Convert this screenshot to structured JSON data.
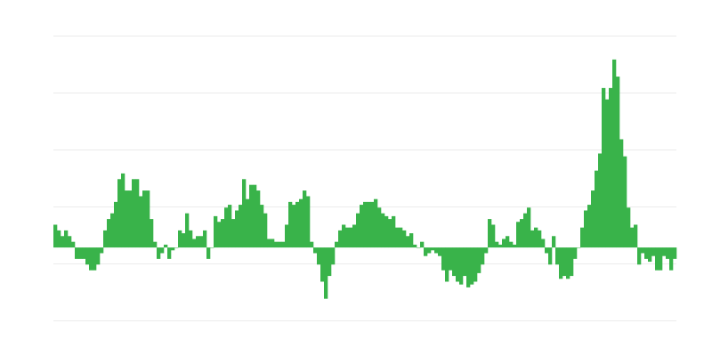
{
  "chart_data": {
    "type": "bar",
    "title": "",
    "xlabel": "",
    "ylabel": "",
    "ylim": [
      -1.28,
      3.72
    ],
    "grid": true,
    "gridline_values": [
      -1.28,
      -0.28,
      0.72,
      1.72,
      2.72,
      3.72
    ],
    "legend": "none",
    "bar_color": "#39b34a",
    "values": [
      0.4,
      0.3,
      0.2,
      0.3,
      0.2,
      0.1,
      -0.2,
      -0.2,
      -0.2,
      -0.3,
      -0.4,
      -0.4,
      -0.3,
      -0.1,
      0.3,
      0.5,
      0.6,
      0.8,
      1.2,
      1.3,
      1.0,
      1.0,
      1.2,
      1.2,
      0.9,
      1.0,
      1.0,
      0.5,
      0.1,
      -0.2,
      -0.1,
      0.05,
      -0.2,
      -0.05,
      0.0,
      0.3,
      0.25,
      0.6,
      0.3,
      0.15,
      0.2,
      0.2,
      0.3,
      -0.2,
      0.0,
      0.55,
      0.45,
      0.5,
      0.7,
      0.75,
      0.5,
      0.65,
      0.75,
      1.2,
      0.85,
      1.1,
      1.1,
      1.0,
      0.75,
      0.6,
      0.15,
      0.15,
      0.1,
      0.1,
      0.1,
      0.4,
      0.8,
      0.75,
      0.8,
      0.85,
      1.0,
      0.9,
      0.1,
      -0.1,
      -0.3,
      -0.6,
      -0.9,
      -0.5,
      -0.3,
      0.1,
      0.3,
      0.4,
      0.35,
      0.35,
      0.4,
      0.6,
      0.75,
      0.8,
      0.8,
      0.8,
      0.85,
      0.7,
      0.6,
      0.55,
      0.5,
      0.55,
      0.35,
      0.35,
      0.3,
      0.2,
      0.25,
      0.05,
      0.0,
      0.1,
      -0.15,
      -0.1,
      -0.05,
      -0.1,
      -0.15,
      -0.4,
      -0.6,
      -0.4,
      -0.5,
      -0.6,
      -0.65,
      -0.5,
      -0.7,
      -0.65,
      -0.6,
      -0.45,
      -0.3,
      -0.1,
      0.5,
      0.4,
      0.1,
      0.05,
      0.15,
      0.2,
      0.1,
      0.05,
      0.45,
      0.5,
      0.6,
      0.7,
      0.3,
      0.35,
      0.3,
      0.15,
      -0.1,
      -0.3,
      0.2,
      -0.3,
      -0.55,
      -0.5,
      -0.55,
      -0.5,
      -0.2,
      0.0,
      0.35,
      0.65,
      0.75,
      1.0,
      1.35,
      1.65,
      2.8,
      2.6,
      2.8,
      3.3,
      3.0,
      1.9,
      1.6,
      0.7,
      0.35,
      0.4,
      -0.3,
      -0.1,
      -0.2,
      -0.25,
      -0.15,
      -0.4,
      -0.4,
      -0.15,
      -0.2,
      -0.4,
      -0.2
    ]
  }
}
